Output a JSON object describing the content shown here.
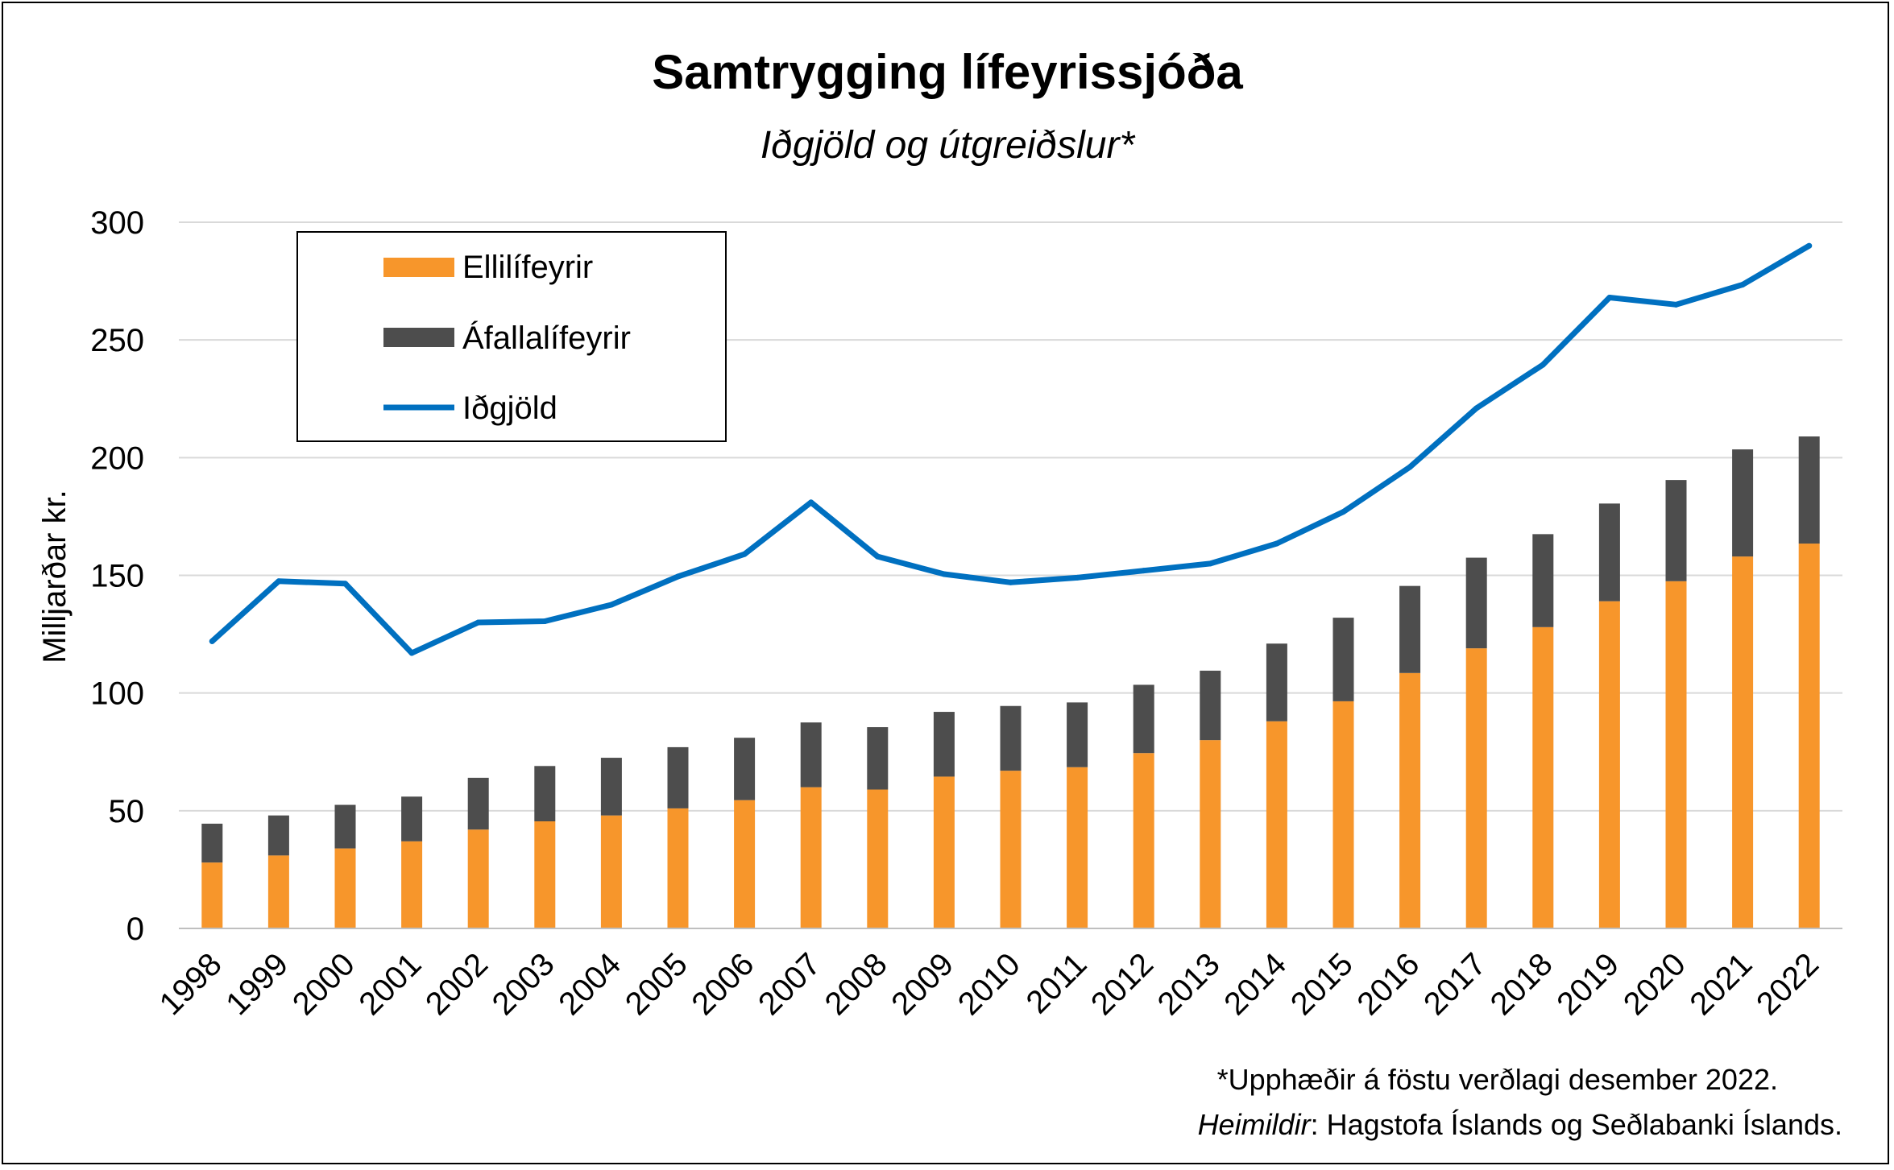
{
  "chart_data": {
    "type": "bar",
    "title": "Samtrygging lífeyrissjóða",
    "subtitle": "Iðgjöld og útgreiðslur*",
    "ylabel": "Milljarðar kr.",
    "ylim": [
      0,
      300
    ],
    "yticks": [
      0,
      50,
      100,
      150,
      200,
      250,
      300
    ],
    "grid": true,
    "legend_position": "top-left",
    "categories": [
      "1998",
      "1999",
      "2000",
      "2001",
      "2002",
      "2003",
      "2004",
      "2005",
      "2006",
      "2007",
      "2008",
      "2009",
      "2010",
      "2011",
      "2012",
      "2013",
      "2014",
      "2015",
      "2016",
      "2017",
      "2018",
      "2019",
      "2020",
      "2021",
      "2022"
    ],
    "series": [
      {
        "name": "Ellilífeyrir",
        "type": "bar",
        "stack": "total",
        "color": "#F7962B",
        "values": [
          28,
          31,
          34,
          37,
          42,
          45.5,
          48,
          51,
          54.5,
          60,
          59,
          64.5,
          67,
          68.5,
          74.5,
          80,
          88,
          96.5,
          108.5,
          119,
          128,
          139,
          147.5,
          158,
          163.5
        ]
      },
      {
        "name": "Áfallalífeyrir",
        "type": "bar",
        "stack": "total",
        "color": "#4D4D4D",
        "values": [
          16.5,
          17,
          18.5,
          19,
          22,
          23.5,
          24.5,
          26,
          26.5,
          27.5,
          26.5,
          27.5,
          27.5,
          27.5,
          29,
          29.5,
          33,
          35.5,
          37,
          38.5,
          39.5,
          41.5,
          43,
          45.5,
          45.5
        ]
      },
      {
        "name": "Iðgjöld",
        "type": "line",
        "color": "#0070C0",
        "values": [
          122,
          147.5,
          146.5,
          117,
          130,
          130.5,
          137.5,
          149.5,
          159,
          181,
          158,
          150.5,
          147,
          149,
          152,
          155,
          163.5,
          177,
          196,
          221,
          239.5,
          268,
          265,
          273.5,
          290
        ]
      }
    ],
    "footnote": "*Upphæðir á föstu verðlagi desember 2022.",
    "source_label": "Heimildir",
    "source_text": ": Hagstofa Íslands og Seðlabanki Íslands."
  }
}
